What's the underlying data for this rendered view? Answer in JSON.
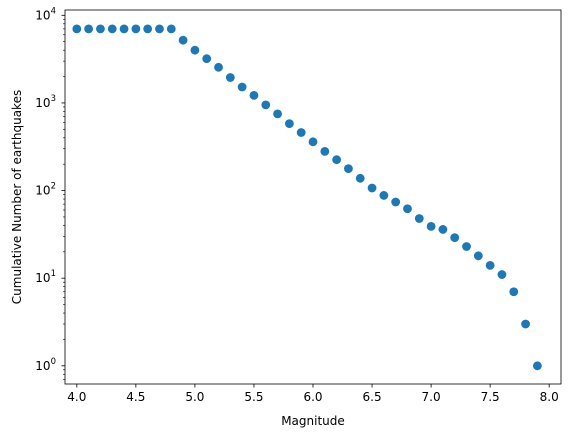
{
  "chart_data": {
    "type": "scatter",
    "title": "",
    "xlabel": "Magnitude",
    "ylabel": "Cumulative Number of earthquakes",
    "xlim": [
      3.9,
      8.1
    ],
    "ylim": [
      0.62,
      11500
    ],
    "yscale": "log",
    "grid": false,
    "legend": "none",
    "marker_color": "#1f77b4",
    "x_ticks": [
      {
        "value": 4.0,
        "label": "4.0"
      },
      {
        "value": 4.5,
        "label": "4.5"
      },
      {
        "value": 5.0,
        "label": "5.0"
      },
      {
        "value": 5.5,
        "label": "5.5"
      },
      {
        "value": 6.0,
        "label": "6.0"
      },
      {
        "value": 6.5,
        "label": "6.5"
      },
      {
        "value": 7.0,
        "label": "7.0"
      },
      {
        "value": 7.5,
        "label": "7.5"
      },
      {
        "value": 8.0,
        "label": "8.0"
      }
    ],
    "y_ticks": [
      {
        "value": 1,
        "base": "10",
        "exp": "0"
      },
      {
        "value": 10,
        "base": "10",
        "exp": "1"
      },
      {
        "value": 100,
        "base": "10",
        "exp": "2"
      },
      {
        "value": 1000,
        "base": "10",
        "exp": "3"
      },
      {
        "value": 10000,
        "base": "10",
        "exp": "4"
      }
    ],
    "series": [
      {
        "x": [
          4.0,
          4.1,
          4.2,
          4.3,
          4.4,
          4.5,
          4.6,
          4.7,
          4.8,
          4.9,
          5.0,
          5.1,
          5.2,
          5.3,
          5.4,
          5.5,
          5.6,
          5.7,
          5.8,
          5.9,
          6.0,
          6.1,
          6.2,
          6.3,
          6.4,
          6.5,
          6.6,
          6.7,
          6.8,
          6.9,
          7.0,
          7.1,
          7.2,
          7.3,
          7.4,
          7.5,
          7.6,
          7.7,
          7.8,
          7.9
        ],
        "y": [
          7000,
          7000,
          7000,
          7000,
          7000,
          7000,
          7000,
          7000,
          7000,
          5200,
          4000,
          3200,
          2550,
          1950,
          1520,
          1220,
          950,
          750,
          580,
          460,
          360,
          280,
          225,
          178,
          138,
          107,
          88,
          74,
          62,
          48,
          39,
          36,
          29,
          23,
          18,
          14,
          11,
          7,
          3,
          1
        ]
      }
    ]
  }
}
